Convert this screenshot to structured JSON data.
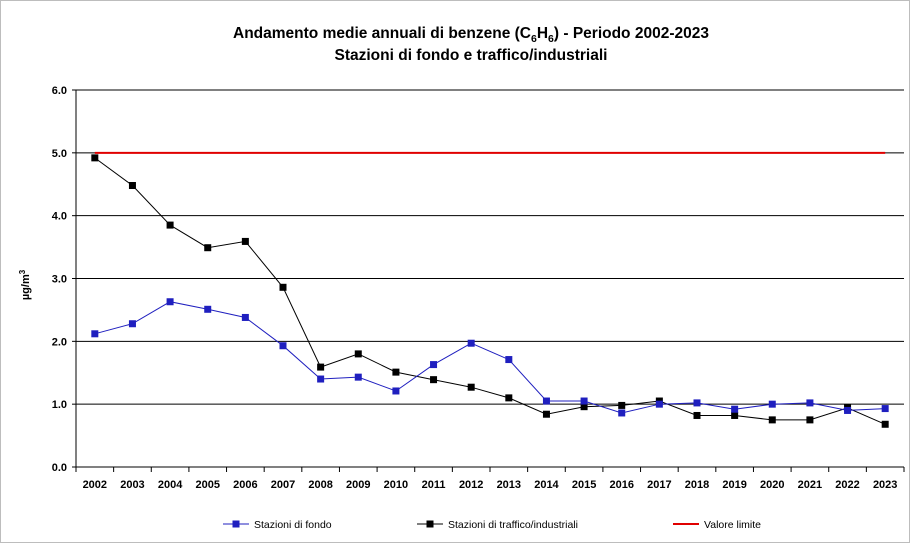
{
  "chart_data": {
    "type": "line",
    "title": {
      "line1_prefix": "Andamento medie annuali di benzene (C",
      "sub1": "6",
      "mid": "H",
      "sub2": "6",
      "line1_suffix": ") - Periodo 2002-2023",
      "line2": "Stazioni di fondo e traffico/industriali"
    },
    "ylabel": {
      "main": "µg/m",
      "sup": "3"
    },
    "ylim": [
      0,
      6
    ],
    "yticks": [
      "0.0",
      "1.0",
      "2.0",
      "3.0",
      "4.0",
      "5.0",
      "6.0"
    ],
    "ytick_values": [
      0,
      1,
      2,
      3,
      4,
      5,
      6
    ],
    "grid": true,
    "legend_position": "bottom",
    "categories": [
      "2002",
      "2003",
      "2004",
      "2005",
      "2006",
      "2007",
      "2008",
      "2009",
      "2010",
      "2011",
      "2012",
      "2013",
      "2014",
      "2015",
      "2016",
      "2017",
      "2018",
      "2019",
      "2020",
      "2021",
      "2022",
      "2023"
    ],
    "series": [
      {
        "name": "Stazioni di fondo",
        "color": "#1f1fbf",
        "marker": "square",
        "values": [
          2.12,
          2.28,
          2.63,
          2.51,
          2.38,
          1.93,
          1.4,
          1.43,
          1.21,
          1.63,
          1.97,
          1.71,
          1.05,
          1.05,
          0.86,
          1.0,
          1.02,
          0.92,
          1.0,
          1.02,
          0.9,
          0.93
        ]
      },
      {
        "name": "Stazioni di traffico/industriali",
        "color": "#000000",
        "marker": "square",
        "values": [
          4.92,
          4.48,
          3.85,
          3.49,
          3.59,
          2.86,
          1.59,
          1.8,
          1.51,
          1.39,
          1.27,
          1.1,
          0.84,
          0.96,
          0.98,
          1.05,
          0.82,
          0.82,
          0.75,
          0.75,
          0.94,
          0.68
        ]
      },
      {
        "name": "Valore limite",
        "color": "#e00000",
        "marker": "none",
        "values": [
          5,
          5,
          5,
          5,
          5,
          5,
          5,
          5,
          5,
          5,
          5,
          5,
          5,
          5,
          5,
          5,
          5,
          5,
          5,
          5,
          5,
          5
        ]
      }
    ]
  }
}
